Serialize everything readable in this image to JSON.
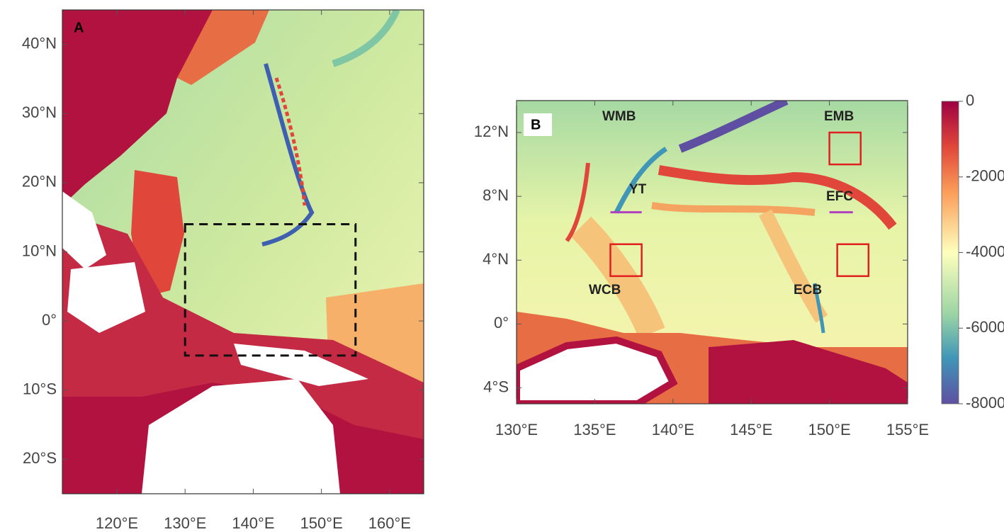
{
  "panels": [
    {
      "label": "A",
      "xlim": [
        112,
        165
      ],
      "ylim": [
        -25,
        45
      ],
      "xticks": [
        {
          "value": 120,
          "label": "120°E"
        },
        {
          "value": 130,
          "label": "130°E"
        },
        {
          "value": 140,
          "label": "140°E"
        },
        {
          "value": 150,
          "label": "150°E"
        },
        {
          "value": 160,
          "label": "160°E"
        }
      ],
      "yticks": [
        {
          "value": 40,
          "label": "40°N"
        },
        {
          "value": 30,
          "label": "30°N"
        },
        {
          "value": 20,
          "label": "20°N"
        },
        {
          "value": 10,
          "label": "10°N"
        },
        {
          "value": 0,
          "label": "0°"
        },
        {
          "value": -10,
          "label": "10°S"
        },
        {
          "value": -20,
          "label": "20°S"
        }
      ],
      "box": {
        "lon": [
          130,
          155
        ],
        "lat": [
          -5,
          14
        ]
      }
    },
    {
      "label": "B",
      "xlim": [
        130,
        155
      ],
      "ylim": [
        -5,
        14
      ],
      "xticks": [
        {
          "value": 130,
          "label": "130°E"
        },
        {
          "value": 135,
          "label": "135°E"
        },
        {
          "value": 140,
          "label": "140°E"
        },
        {
          "value": 145,
          "label": "145°E"
        },
        {
          "value": 150,
          "label": "150°E"
        },
        {
          "value": 155,
          "label": "155°E"
        }
      ],
      "yticks": [
        {
          "value": 12,
          "label": "12°N"
        },
        {
          "value": 8,
          "label": "8°N"
        },
        {
          "value": 4,
          "label": "4°N"
        },
        {
          "value": 0,
          "label": "0°"
        },
        {
          "value": -4,
          "label": "4°S"
        }
      ],
      "regions": [
        "WMB",
        "EMB",
        "YT",
        "EFC",
        "WCB",
        "ECB"
      ],
      "red_boxes": [
        {
          "lon": [
            150,
            152
          ],
          "lat": [
            10,
            12
          ]
        },
        {
          "lon": [
            136,
            138
          ],
          "lat": [
            3,
            5
          ]
        },
        {
          "lon": [
            150.5,
            152.5
          ],
          "lat": [
            3,
            5
          ]
        }
      ],
      "sections": [
        {
          "lon": [
            136,
            138
          ],
          "lat": 7
        },
        {
          "lon": [
            150,
            151.5
          ],
          "lat": 7
        }
      ]
    }
  ],
  "colorbar": {
    "lim": [
      -8000,
      0
    ],
    "ticks": [
      0,
      -2000,
      -4000,
      -6000,
      -8000
    ]
  }
}
